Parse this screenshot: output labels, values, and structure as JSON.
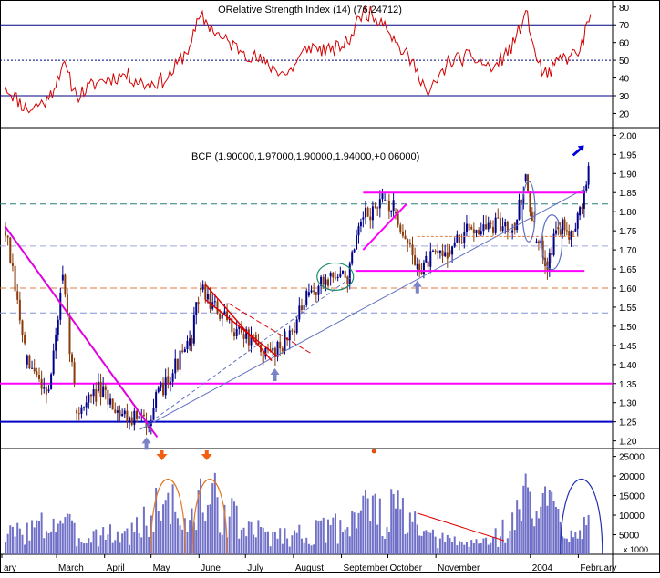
{
  "chart_data": [
    {
      "type": "line",
      "panel": "indicator",
      "title": "ORelative Strength Index (14) (76.24712)",
      "y_ticks": [
        20,
        30,
        40,
        50,
        60,
        70,
        80
      ],
      "ylim": [
        12,
        84
      ],
      "reference_lines": [
        {
          "y": 70,
          "style": "solid",
          "color": "#000080"
        },
        {
          "y": 50,
          "style": "dotted",
          "color": "#000080"
        },
        {
          "y": 30,
          "style": "solid",
          "color": "#000080"
        }
      ],
      "series": [
        {
          "color": "#d40000",
          "x": [
            "2003-01-27",
            "2003-02-10",
            "2003-02-24",
            "2003-03-05",
            "2003-03-14",
            "2003-03-28",
            "2003-04-14",
            "2003-04-28",
            "2003-05-12",
            "2003-05-26",
            "2003-06-02",
            "2003-06-16",
            "2003-06-30",
            "2003-07-14",
            "2003-07-28",
            "2003-08-11",
            "2003-08-25",
            "2003-09-05",
            "2003-09-15",
            "2003-09-29",
            "2003-10-06",
            "2003-10-20",
            "2003-10-27",
            "2003-11-10",
            "2003-11-24",
            "2003-12-08",
            "2003-12-22",
            "2003-12-29",
            "2004-01-05",
            "2004-01-12",
            "2004-01-19",
            "2004-01-26",
            "2004-02-02",
            "2004-02-09"
          ],
          "values": [
            35,
            22,
            28,
            48,
            30,
            38,
            42,
            36,
            40,
            58,
            75,
            62,
            55,
            48,
            42,
            58,
            55,
            60,
            78,
            72,
            60,
            45,
            30,
            50,
            52,
            45,
            60,
            78,
            50,
            40,
            50,
            52,
            55,
            76
          ]
        }
      ]
    },
    {
      "type": "candlestick",
      "panel": "price",
      "title": "BCP (1.90000,1.97000,1.90000,1.94000,+0.06000)",
      "y_ticks": [
        1.2,
        1.25,
        1.3,
        1.35,
        1.4,
        1.45,
        1.5,
        1.55,
        1.6,
        1.65,
        1.7,
        1.75,
        1.8,
        1.85,
        1.9,
        1.95,
        2.0
      ],
      "ylim": [
        1.18,
        2.02
      ],
      "x_labels": [
        "ary",
        "March",
        "April",
        "May",
        "June",
        "July",
        "August",
        "September",
        "October",
        "November",
        "2004",
        "February"
      ],
      "series": [
        {
          "name": "close",
          "color": "#00008b",
          "up_color": "#00008b",
          "down_color": "#8b3a0a",
          "x": [
            "2003-01-27",
            "2003-02-10",
            "2003-02-24",
            "2003-03-05",
            "2003-03-14",
            "2003-03-28",
            "2003-04-14",
            "2003-04-28",
            "2003-05-12",
            "2003-05-26",
            "2003-06-02",
            "2003-06-16",
            "2003-06-30",
            "2003-07-14",
            "2003-07-28",
            "2003-08-11",
            "2003-08-25",
            "2003-09-05",
            "2003-09-15",
            "2003-09-29",
            "2003-10-06",
            "2003-10-20",
            "2003-10-27",
            "2003-11-10",
            "2003-11-24",
            "2003-12-08",
            "2003-12-22",
            "2003-12-29",
            "2004-01-05",
            "2004-01-12",
            "2004-01-19",
            "2004-01-26",
            "2004-02-02",
            "2004-02-09"
          ],
          "values": [
            1.75,
            1.4,
            1.33,
            1.62,
            1.28,
            1.33,
            1.27,
            1.25,
            1.37,
            1.45,
            1.6,
            1.52,
            1.48,
            1.42,
            1.47,
            1.58,
            1.63,
            1.63,
            1.78,
            1.83,
            1.8,
            1.65,
            1.67,
            1.7,
            1.76,
            1.76,
            1.77,
            1.88,
            1.72,
            1.67,
            1.76,
            1.75,
            1.79,
            1.94
          ]
        }
      ],
      "reference_lines": [
        {
          "y": 1.82,
          "style": "dashed",
          "color": "#2a7d7d"
        },
        {
          "y": 1.71,
          "style": "dashed",
          "color": "#a0a8d8"
        },
        {
          "y": 1.6,
          "style": "dashed",
          "color": "#e07a40"
        },
        {
          "y": 1.535,
          "style": "dashed",
          "color": "#8090d0"
        },
        {
          "y": 1.35,
          "style": "solid",
          "color": "#ff00ff"
        },
        {
          "y": 1.25,
          "style": "solid",
          "color": "#0000c8"
        }
      ]
    },
    {
      "type": "bar",
      "panel": "volume",
      "y_ticks": [
        5000,
        10000,
        15000,
        20000,
        25000
      ],
      "ylim": [
        0,
        27000
      ],
      "unit_label": "x 1000",
      "series": [
        {
          "color": "#7070c8",
          "x": [
            "2003-01-27",
            "2003-02-10",
            "2003-02-24",
            "2003-03-05",
            "2003-03-14",
            "2003-03-28",
            "2003-04-14",
            "2003-04-28",
            "2003-05-12",
            "2003-05-26",
            "2003-06-02",
            "2003-06-16",
            "2003-06-30",
            "2003-07-14",
            "2003-07-28",
            "2003-08-11",
            "2003-08-25",
            "2003-09-05",
            "2003-09-15",
            "2003-09-29",
            "2003-10-06",
            "2003-10-20",
            "2003-10-27",
            "2003-11-10",
            "2003-11-24",
            "2003-12-08",
            "2003-12-22",
            "2003-12-29",
            "2004-01-05",
            "2004-01-12",
            "2004-01-19",
            "2004-01-26",
            "2004-02-02",
            "2004-02-09"
          ],
          "values": [
            7000,
            9000,
            11000,
            14000,
            6000,
            8000,
            7000,
            12000,
            22000,
            9000,
            21000,
            18000,
            9000,
            8000,
            7000,
            8000,
            9000,
            12000,
            20000,
            12000,
            18000,
            9000,
            6000,
            5000,
            4000,
            6000,
            12000,
            23000,
            14000,
            20000,
            13000,
            9000,
            10000,
            18000
          ]
        }
      ]
    }
  ]
}
